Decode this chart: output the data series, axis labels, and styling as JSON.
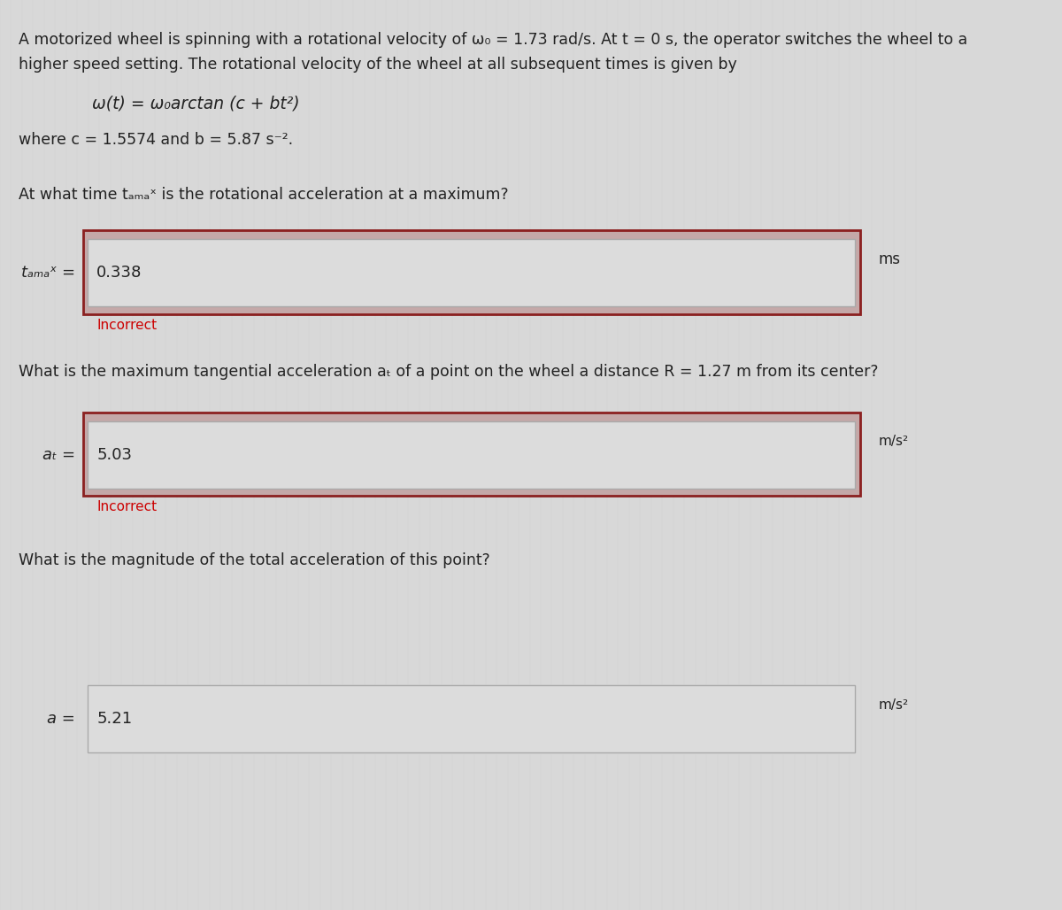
{
  "bg_color": "#d8d8d8",
  "text_color": "#222222",
  "incorrect_color": "#cc0000",
  "input_bg": "#e8e8e8",
  "input_border_outer": "#a05050",
  "input_border_inner": "#c0c0c0",
  "line1": "A motorized wheel is spinning with a rotational velocity of ω₀ = 1.73 rad/s. At t = 0 s, the operator switches the wheel to a",
  "line2": "higher speed setting. The rotational velocity of the wheel at all subsequent times is given by",
  "formula": "ω(t) = ω₀arctan (c + bt²)",
  "params": "where c = 1.5574 and b = 5.87 s⁻².",
  "q1": "At what time tₐₘₐˣ is the rotational acceleration at a maximum?",
  "label1": "tₐₘₐˣ =",
  "value1": "0.338",
  "unit1": "ms",
  "incorrect1": "Incorrect",
  "q2": "What is the maximum tangential acceleration aₜ of a point on the wheel a distance R = 1.27 m from its center?",
  "label2": "aₜ =",
  "value2": "5.03",
  "unit2": "m/s²",
  "incorrect2": "Incorrect",
  "q3": "What is the magnitude of the total acceleration of this point?",
  "label3": "a =",
  "value3": "5.21",
  "unit3": "m/s²"
}
